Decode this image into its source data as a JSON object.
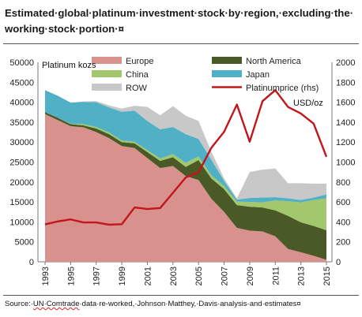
{
  "title_line1": "Estimated·global·platinum·investment·stock·by·region,·excluding·the·",
  "title_line2": "working·stock·portion·¤",
  "source_prefix": "Source:·",
  "source_squiggle": "UN·Comtrade",
  "source_rest": "·data·re-worked,·Johnson·Matthey,·Davis·analysis·and·estimates¤",
  "chart_data": {
    "type": "area",
    "title": "",
    "y_left_label": "Platinum kozs",
    "y_right_label": "USD/oz",
    "x_ticks": [
      "1993",
      "1995",
      "1997",
      "1999",
      "2001",
      "2003",
      "2005",
      "2007",
      "2009",
      "2011",
      "2013",
      "2015"
    ],
    "y_left_ticks": [
      "0",
      "5000",
      "10000",
      "15000",
      "20000",
      "25000",
      "30000",
      "35000",
      "40000",
      "45000",
      "50000"
    ],
    "y_right_ticks": [
      "0",
      "200",
      "400",
      "600",
      "800",
      "1000",
      "1200",
      "1400",
      "1600",
      "1800",
      "2000"
    ],
    "ylim_left": [
      0,
      50000
    ],
    "ylim_right": [
      0,
      2000
    ],
    "legend_position": "top",
    "x": [
      1993,
      1994,
      1995,
      1996,
      1997,
      1998,
      1999,
      2000,
      2001,
      2002,
      2003,
      2004,
      2005,
      2006,
      2007,
      2008,
      2009,
      2010,
      2011,
      2012,
      2013,
      2014,
      2015
    ],
    "stacked_series": [
      {
        "name": "Europe",
        "color": "#d9918e",
        "values": [
          37000,
          35500,
          34000,
          33700,
          32500,
          31000,
          29000,
          28500,
          26000,
          23500,
          24000,
          21500,
          20500,
          15800,
          12500,
          8500,
          7800,
          7600,
          6400,
          3200,
          2400,
          1500,
          500
        ]
      },
      {
        "name": "North America",
        "color": "#4a5a26",
        "values": [
          500,
          600,
          500,
          500,
          900,
          1000,
          1000,
          1200,
          1500,
          1800,
          2200,
          2300,
          5000,
          5100,
          5700,
          5700,
          6000,
          6000,
          6500,
          8300,
          7500,
          7500,
          7400
        ]
      },
      {
        "name": "China",
        "color": "#a3c76c",
        "values": [
          0,
          0,
          100,
          300,
          400,
          400,
          400,
          400,
          500,
          600,
          800,
          1000,
          900,
          800,
          800,
          900,
          1200,
          1300,
          2500,
          3700,
          5000,
          6500,
          8000
        ]
      },
      {
        "name": "Japan",
        "color": "#4fb0c6",
        "values": [
          5500,
          5500,
          5300,
          5600,
          6200,
          6300,
          7200,
          7800,
          7300,
          7300,
          6800,
          7200,
          4400,
          3900,
          1300,
          500,
          1000,
          1200,
          800,
          700,
          600,
          600,
          1000
        ]
      },
      {
        "name": "ROW",
        "color": "#c8c8c8",
        "values": [
          0,
          0,
          0,
          100,
          300,
          500,
          800,
          1200,
          3500,
          3500,
          5200,
          4600,
          4500,
          2000,
          600,
          300,
          6500,
          7000,
          7200,
          3800,
          4200,
          3500,
          2700
        ]
      }
    ],
    "line_series": {
      "name": "Platinum price (rhs)",
      "legend_label": "Platinumprice (rhs)",
      "color": "#c0161c",
      "values": [
        375,
        405,
        425,
        395,
        395,
        372,
        377,
        545,
        529,
        539,
        692,
        846,
        897,
        1142,
        1303,
        1576,
        1204,
        1610,
        1721,
        1552,
        1487,
        1385,
        1053
      ]
    }
  }
}
